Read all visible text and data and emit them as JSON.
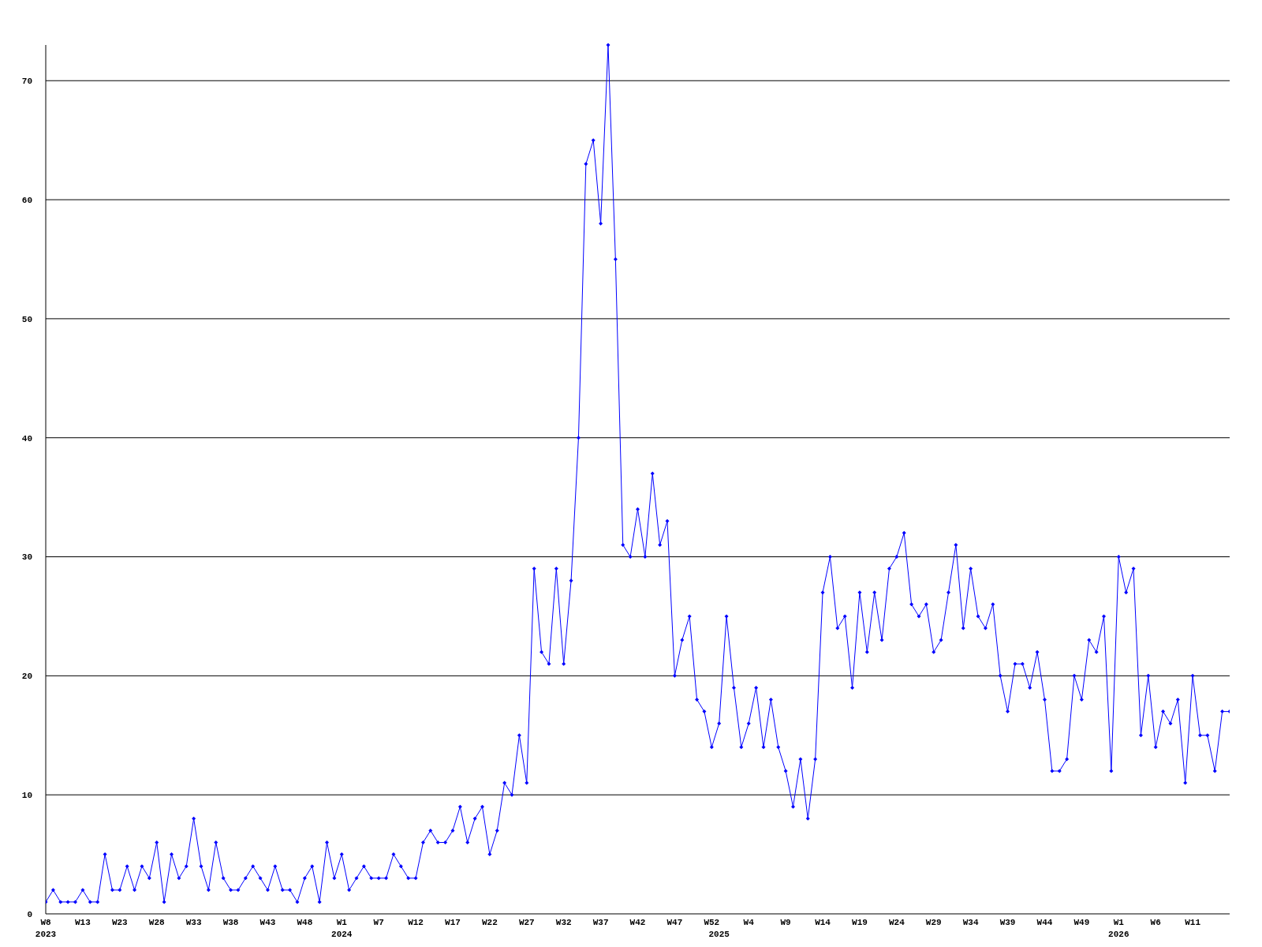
{
  "chart_data": {
    "type": "line",
    "categories": [
      "W8\n2023",
      null,
      null,
      null,
      null,
      "W13",
      null,
      null,
      null,
      null,
      "W23",
      null,
      null,
      null,
      null,
      "W28",
      null,
      null,
      null,
      null,
      "W33",
      null,
      null,
      null,
      null,
      "W38",
      null,
      null,
      null,
      null,
      "W43",
      null,
      null,
      null,
      null,
      "W48",
      null,
      null,
      null,
      null,
      "W1\n2024",
      null,
      null,
      null,
      null,
      "W7",
      null,
      null,
      null,
      null,
      "W12",
      null,
      null,
      null,
      null,
      "W17",
      null,
      null,
      null,
      null,
      "W22",
      null,
      null,
      null,
      null,
      "W27",
      null,
      null,
      null,
      null,
      "W32",
      null,
      null,
      null,
      null,
      "W37",
      null,
      null,
      null,
      null,
      "W42",
      null,
      null,
      null,
      null,
      "W47",
      null,
      null,
      null,
      null,
      "W52",
      "\n2025",
      null,
      null,
      null,
      "W4",
      null,
      null,
      null,
      null,
      "W9",
      null,
      null,
      null,
      null,
      "W14",
      null,
      null,
      null,
      null,
      "W19",
      null,
      null,
      null,
      null,
      "W24",
      null,
      null,
      null,
      null,
      "W29",
      null,
      null,
      null,
      null,
      "W34",
      null,
      null,
      null,
      null,
      "W39",
      null,
      null,
      null,
      null,
      "W44",
      null,
      null,
      null,
      null,
      "W49",
      null,
      null,
      null,
      null,
      "W1\n2026",
      null,
      null,
      null,
      null,
      "W6",
      null,
      null,
      null,
      null,
      "W11",
      null,
      null,
      null,
      null,
      null
    ],
    "series": [
      {
        "color": "#0000ff",
        "values": [
          1,
          2,
          1,
          1,
          1,
          2,
          1,
          1,
          5,
          2,
          2,
          4,
          2,
          4,
          3,
          6,
          1,
          5,
          3,
          4,
          8,
          4,
          2,
          6,
          3,
          2,
          2,
          3,
          4,
          3,
          2,
          4,
          2,
          2,
          1,
          3,
          4,
          1,
          6,
          3,
          5,
          2,
          3,
          4,
          3,
          3,
          3,
          5,
          4,
          3,
          3,
          6,
          7,
          6,
          6,
          7,
          9,
          6,
          8,
          9,
          5,
          7,
          11,
          10,
          15,
          11,
          29,
          22,
          21,
          29,
          21,
          28,
          40,
          63,
          65,
          58,
          73,
          55,
          31,
          30,
          34,
          30,
          37,
          31,
          33,
          20,
          23,
          25,
          18,
          17,
          14,
          16,
          25,
          19,
          14,
          16,
          19,
          14,
          18,
          14,
          12,
          9,
          13,
          8,
          13,
          27,
          30,
          24,
          25,
          19,
          27,
          22,
          27,
          23,
          29,
          30,
          32,
          26,
          25,
          26,
          22,
          23,
          27,
          31,
          24,
          29,
          25,
          24,
          26,
          20,
          17,
          21,
          21,
          19,
          22,
          18,
          12,
          12,
          13,
          20,
          18,
          23,
          22,
          25,
          12,
          30,
          27,
          29,
          15,
          20,
          14,
          17,
          16,
          18,
          11,
          20,
          15,
          15,
          12,
          17,
          17
        ]
      }
    ],
    "ylim": [
      0,
      73
    ],
    "yticks": [
      0,
      10,
      20,
      30,
      40,
      50,
      60,
      70
    ],
    "grid": "y",
    "marker": "diamond",
    "line_style": "solid"
  }
}
